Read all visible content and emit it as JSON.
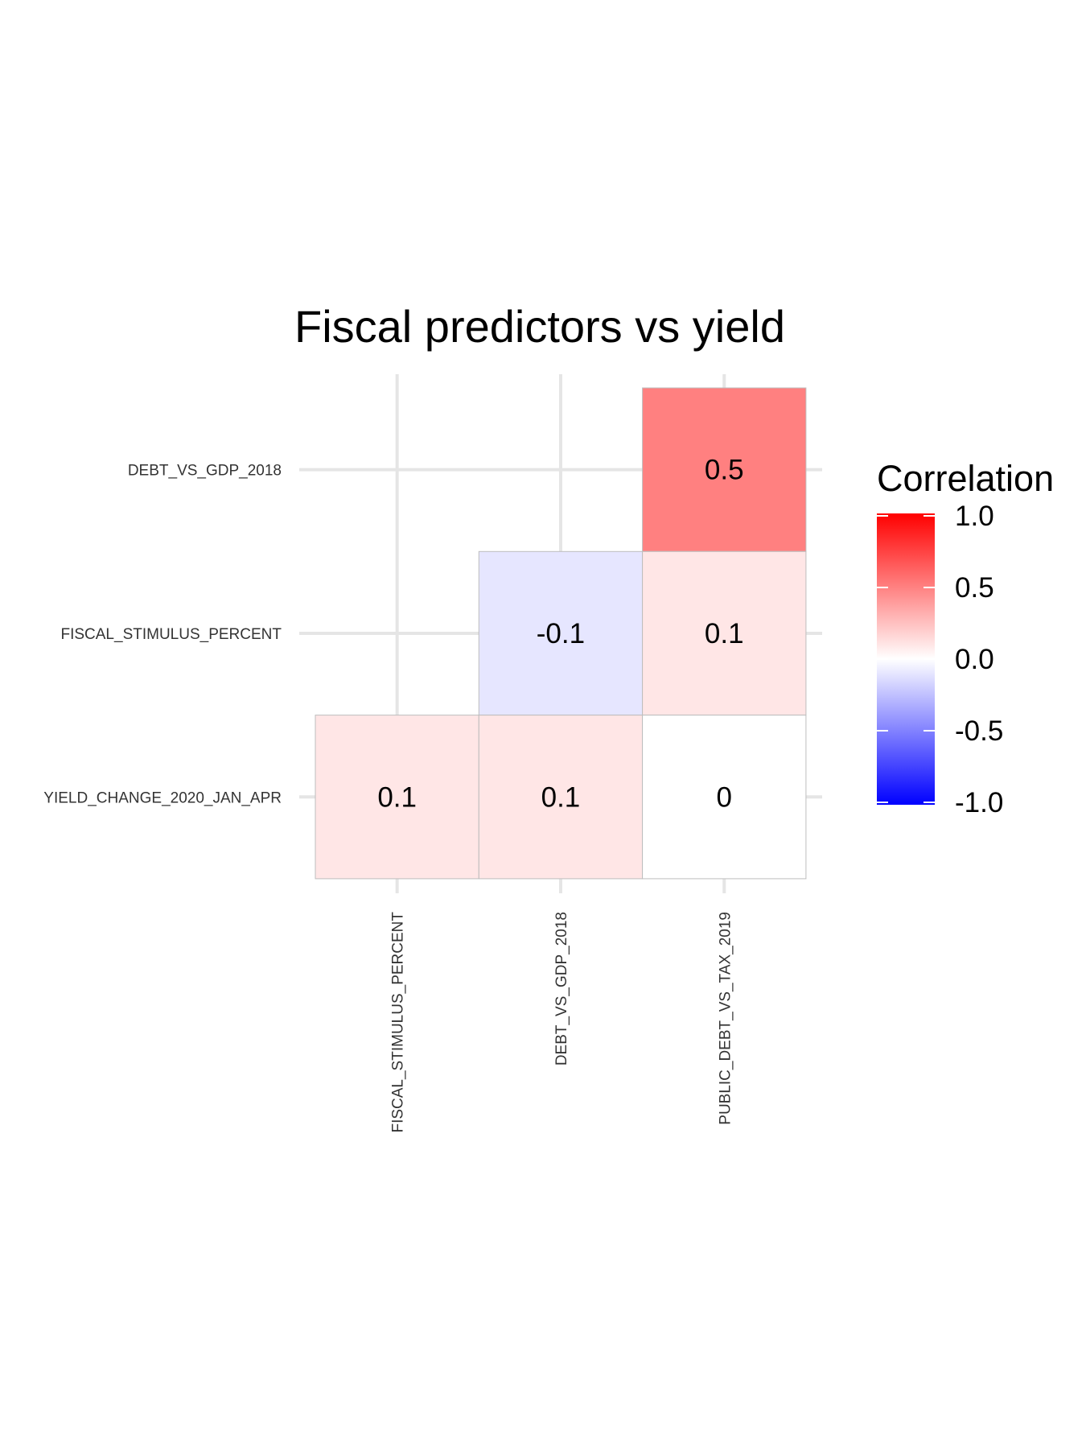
{
  "chart_data": {
    "type": "heatmap",
    "title": "Fiscal predictors vs yield",
    "x_categories": [
      "FISCAL_STIMULUS_PERCENT",
      "DEBT_VS_GDP_2018",
      "PUBLIC_DEBT_VS_TAX_2019"
    ],
    "y_categories": [
      "DEBT_VS_GDP_2018",
      "FISCAL_STIMULUS_PERCENT",
      "YIELD_CHANGE_2020_JAN_APR"
    ],
    "cells": [
      {
        "x": "PUBLIC_DEBT_VS_TAX_2019",
        "y": "DEBT_VS_GDP_2018",
        "value": 0.5,
        "label": "0.5"
      },
      {
        "x": "DEBT_VS_GDP_2018",
        "y": "FISCAL_STIMULUS_PERCENT",
        "value": -0.1,
        "label": "-0.1"
      },
      {
        "x": "PUBLIC_DEBT_VS_TAX_2019",
        "y": "FISCAL_STIMULUS_PERCENT",
        "value": 0.1,
        "label": "0.1"
      },
      {
        "x": "FISCAL_STIMULUS_PERCENT",
        "y": "YIELD_CHANGE_2020_JAN_APR",
        "value": 0.1,
        "label": "0.1"
      },
      {
        "x": "DEBT_VS_GDP_2018",
        "y": "YIELD_CHANGE_2020_JAN_APR",
        "value": 0.1,
        "label": "0.1"
      },
      {
        "x": "PUBLIC_DEBT_VS_TAX_2019",
        "y": "YIELD_CHANGE_2020_JAN_APR",
        "value": 0,
        "label": "0"
      }
    ],
    "legend": {
      "title": "Correlation",
      "range": [
        -1,
        1
      ],
      "ticks": [
        "1.0",
        "0.5",
        "0.0",
        "-0.5",
        "-1.0"
      ],
      "tick_values": [
        1,
        0.5,
        0,
        -0.5,
        -1
      ],
      "low_color": "#0000ff",
      "mid_color": "#ffffff",
      "high_color": "#ff0000",
      "placement": "right"
    },
    "grid": true
  }
}
